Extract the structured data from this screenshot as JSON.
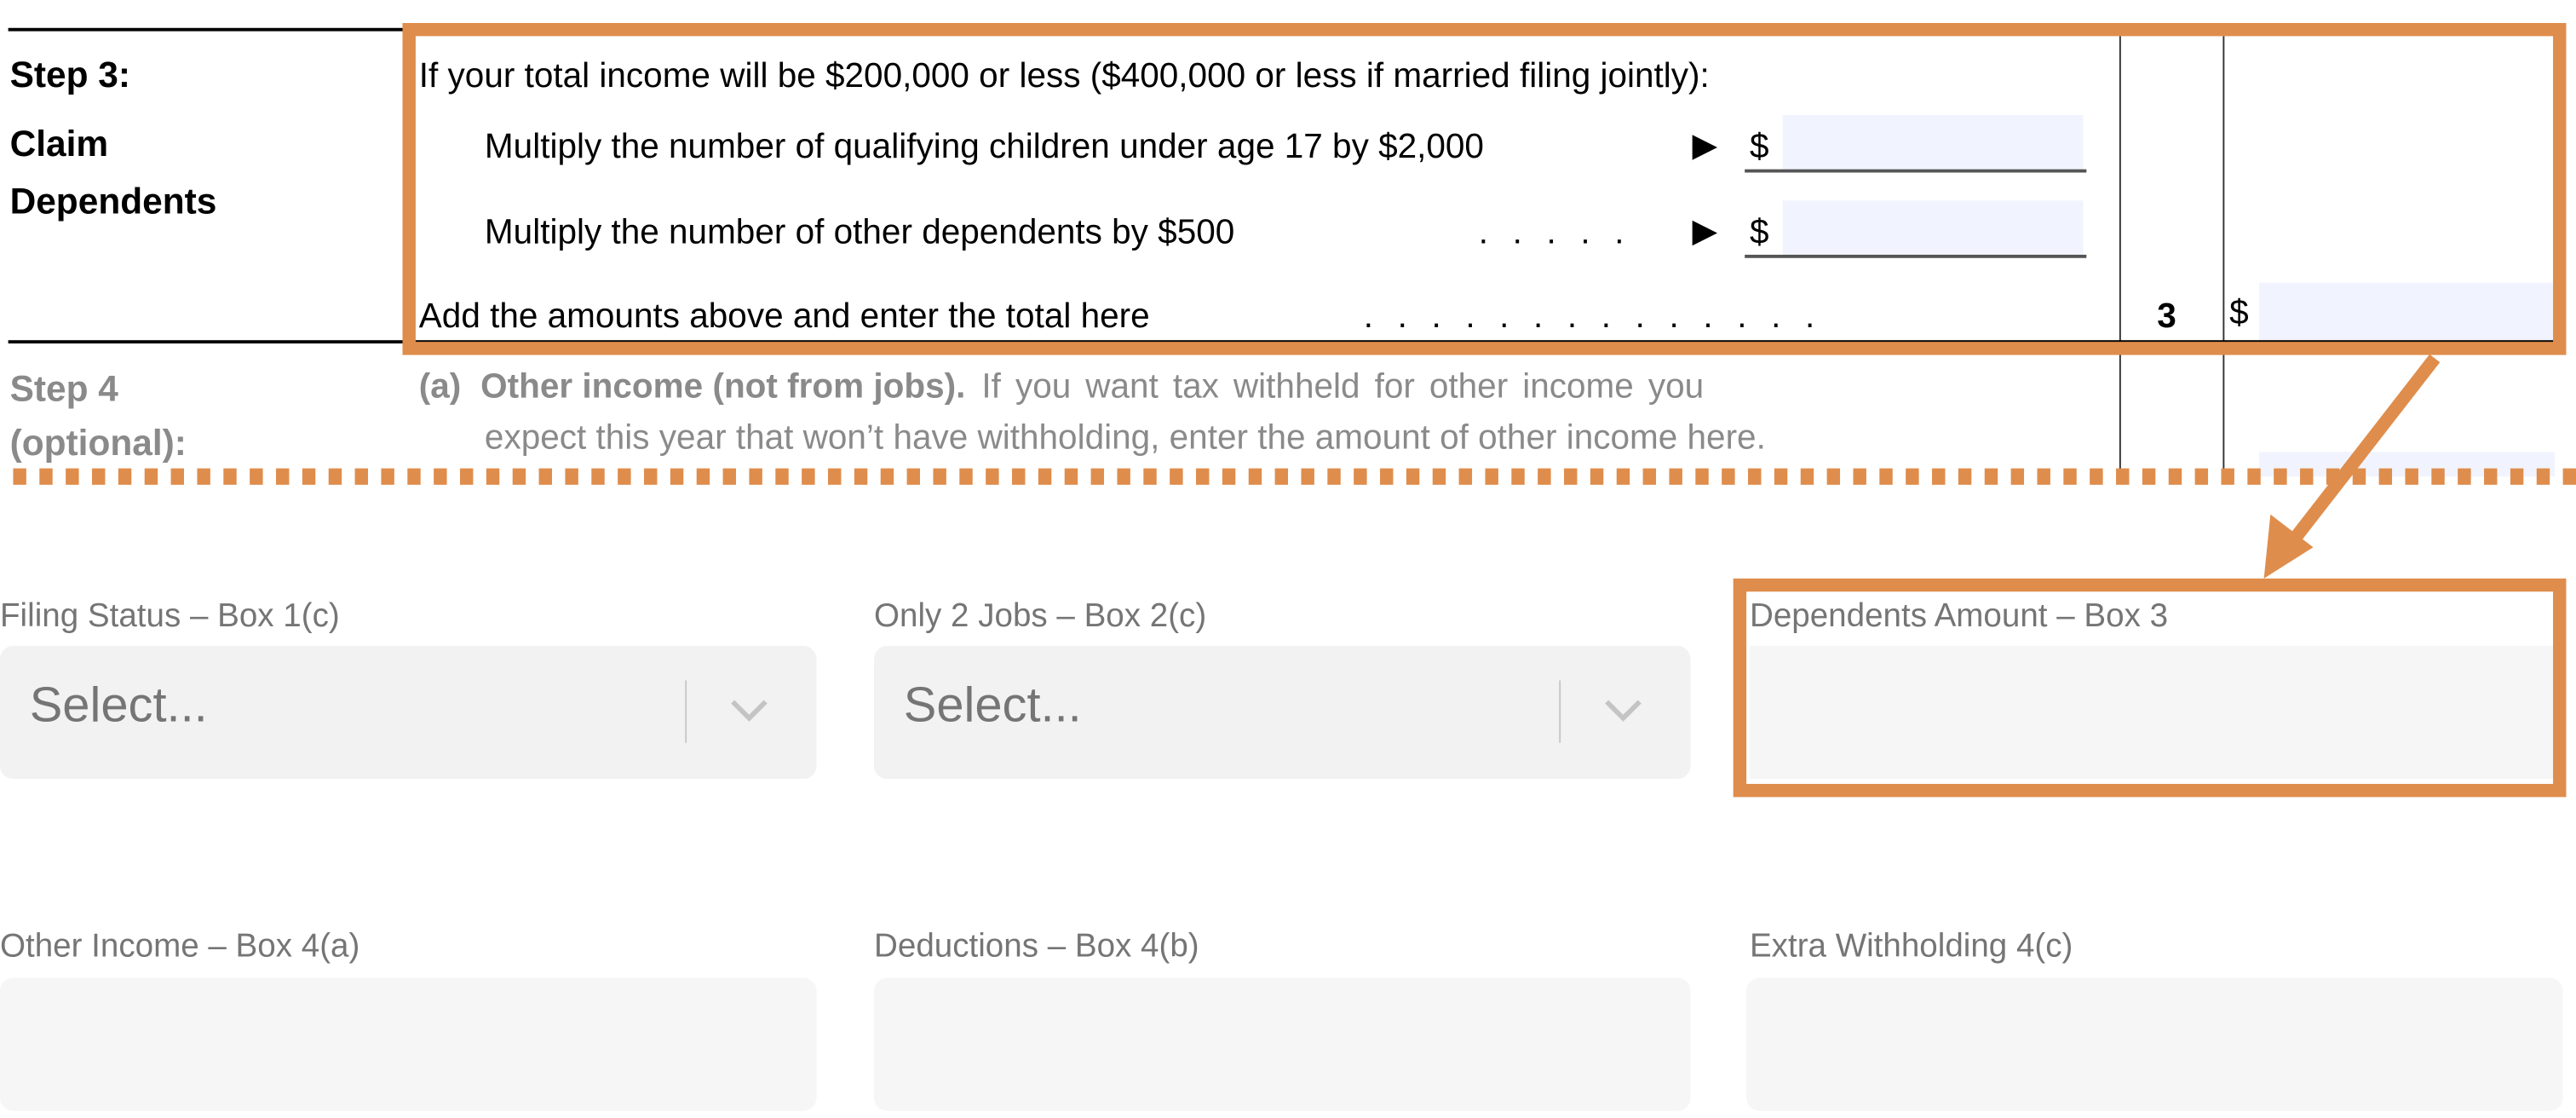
{
  "colors": {
    "highlight": "#df8d4c",
    "pdf_input_fill": "#f1f4fe",
    "field_fill": "#f6f6f6",
    "label_gray": "#757575"
  },
  "pdf": {
    "step3": {
      "title": "Step 3:",
      "subtitle_line1": "Claim",
      "subtitle_line2": "Dependents",
      "intro": "If your total income will be $200,000 or less ($400,000 or less if married filing jointly):",
      "children_line": "Multiply the number of qualifying children under age 17 by $2,000",
      "other_line": "Multiply the number of other dependents by $500",
      "other_dots": ". . . . .",
      "total_line": "Add the amounts above and enter the total here",
      "total_dots": ". . . . . . . . . . . . . .",
      "arrow_glyph": "▶",
      "currency": "$",
      "line_number": "3"
    },
    "step4": {
      "title_line1": "Step 4",
      "title_line2": "(optional):",
      "a_label": "(a)",
      "a_heading": "Other income (not from jobs).",
      "a_text_line1": "If you want tax withheld for other income you",
      "a_text_line2": "expect this year that won’t have withholding, enter the amount of other income here."
    }
  },
  "form": {
    "filing_status": {
      "label": "Filing Status – Box 1(c)",
      "placeholder": "Select..."
    },
    "two_jobs": {
      "label": "Only 2 Jobs – Box 2(c)",
      "placeholder": "Select..."
    },
    "dependents": {
      "label": "Dependents Amount – Box 3",
      "value": ""
    },
    "other_income": {
      "label": "Other Income – Box 4(a)",
      "value": ""
    },
    "deductions": {
      "label": "Deductions – Box 4(b)",
      "value": ""
    },
    "extra_withholding": {
      "label": "Extra Withholding 4(c)",
      "value": ""
    }
  },
  "icons": {
    "select_chevron": "chevron-down-icon",
    "callout": "arrow-icon"
  }
}
